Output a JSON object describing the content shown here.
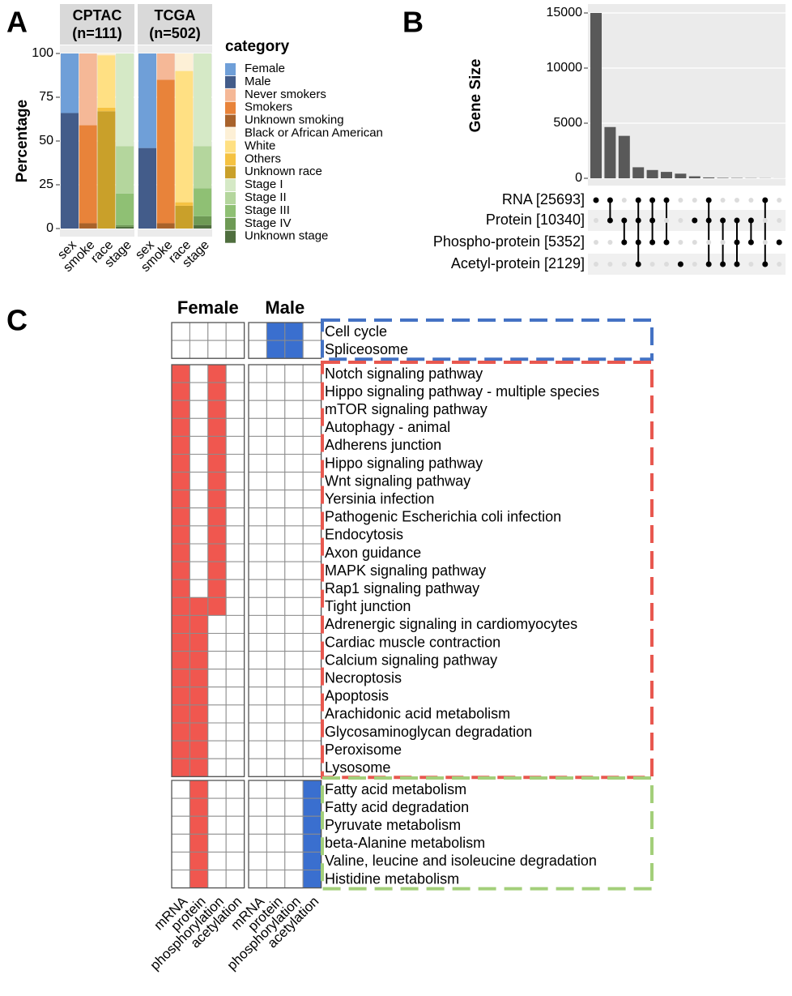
{
  "chart_data": [
    {
      "type": "stacked_bar",
      "panel": "A",
      "facets": [
        {
          "title": "CPTAC",
          "subtitle": "(n=111)"
        },
        {
          "title": "TCGA",
          "subtitle": "(n=502)"
        }
      ],
      "categories": [
        "sex",
        "smoke",
        "race",
        "stage",
        "sex",
        "smoke",
        "race",
        "stage"
      ],
      "ylabel": "Percentage",
      "ylim": [
        0,
        100
      ],
      "yticks": [
        0,
        25,
        50,
        75,
        100
      ],
      "legend_title": "category",
      "series": [
        {
          "name": "Female",
          "color": "#6f9fd8",
          "values": [
            34,
            null,
            null,
            null,
            54,
            null,
            null,
            null
          ]
        },
        {
          "name": "Male",
          "color": "#435c8a",
          "values": [
            66,
            null,
            null,
            null,
            46,
            null,
            null,
            null
          ]
        },
        {
          "name": "Never smokers",
          "color": "#f5b897",
          "values": [
            null,
            41,
            null,
            null,
            null,
            15,
            null,
            null
          ]
        },
        {
          "name": "Smokers",
          "color": "#e8833a",
          "values": [
            null,
            56,
            null,
            null,
            null,
            82,
            null,
            null
          ]
        },
        {
          "name": "Unknown smoking",
          "color": "#a8622b",
          "values": [
            null,
            3,
            null,
            null,
            null,
            3,
            null,
            null
          ]
        },
        {
          "name": "Black or African American",
          "color": "#fdf0d6",
          "values": [
            null,
            null,
            1,
            null,
            null,
            null,
            10,
            null
          ]
        },
        {
          "name": "White",
          "color": "#ffe083",
          "values": [
            null,
            null,
            30,
            null,
            null,
            null,
            75,
            null
          ]
        },
        {
          "name": "Others",
          "color": "#f5c242",
          "values": [
            null,
            null,
            2,
            null,
            null,
            null,
            2,
            null
          ]
        },
        {
          "name": "Unknown race",
          "color": "#c9a02a",
          "values": [
            null,
            null,
            67,
            null,
            null,
            null,
            13,
            null
          ]
        },
        {
          "name": "Stage I",
          "color": "#d5e9c6",
          "values": [
            null,
            null,
            null,
            53,
            null,
            null,
            null,
            53
          ]
        },
        {
          "name": "Stage II",
          "color": "#b4d69d",
          "values": [
            null,
            null,
            null,
            27,
            null,
            null,
            null,
            24
          ]
        },
        {
          "name": "Stage III",
          "color": "#8fc074",
          "values": [
            null,
            null,
            null,
            18,
            null,
            null,
            null,
            16
          ]
        },
        {
          "name": "Stage IV",
          "color": "#6e9a55",
          "values": [
            null,
            null,
            null,
            1,
            null,
            null,
            null,
            5
          ]
        },
        {
          "name": "Unknown stage",
          "color": "#4f6e3e",
          "values": [
            null,
            null,
            null,
            1,
            null,
            null,
            null,
            2
          ]
        }
      ]
    },
    {
      "type": "upset",
      "panel": "B",
      "ylabel": "Gene Size",
      "ylim": [
        0,
        15000
      ],
      "yticks": [
        0,
        5000,
        10000,
        15000
      ],
      "color": "#595959",
      "values": [
        15000,
        4650,
        3850,
        1000,
        750,
        580,
        420,
        180,
        80,
        40,
        30,
        20,
        15,
        5
      ],
      "sets": [
        "RNA [25693]",
        "Protein [10340]",
        "Phospho-protein [5352]",
        "Acetyl-protein [2129]"
      ],
      "matrix": [
        [
          1,
          0,
          0,
          0
        ],
        [
          1,
          1,
          0,
          0
        ],
        [
          0,
          1,
          1,
          0
        ],
        [
          1,
          1,
          1,
          1
        ],
        [
          1,
          1,
          1,
          0
        ],
        [
          1,
          0,
          1,
          0
        ],
        [
          0,
          0,
          0,
          1
        ],
        [
          0,
          1,
          0,
          0
        ],
        [
          1,
          1,
          0,
          1
        ],
        [
          0,
          1,
          0,
          1
        ],
        [
          0,
          1,
          1,
          1
        ],
        [
          0,
          1,
          1,
          0
        ],
        [
          1,
          0,
          0,
          1
        ],
        [
          0,
          0,
          1,
          0
        ]
      ]
    },
    {
      "type": "heatmap",
      "panel": "C",
      "groups": [
        {
          "name": "Female",
          "color": "#f0574f"
        },
        {
          "name": "Male",
          "color": "#3a6fcf"
        }
      ],
      "columns": [
        "mRNA",
        "protein",
        "phosphorylation",
        "acetylation"
      ],
      "blocks": [
        {
          "color": "#4472c4",
          "rows": [
            {
              "label": "Cell cycle",
              "values": [
                [
                  0,
                  0,
                  0,
                  0
                ],
                [
                  0,
                  1,
                  1,
                  0
                ]
              ]
            },
            {
              "label": "Spliceosome",
              "values": [
                [
                  0,
                  0,
                  0,
                  0
                ],
                [
                  0,
                  1,
                  1,
                  0
                ]
              ]
            }
          ]
        },
        {
          "color": "#e8584f",
          "rows": [
            {
              "label": "Notch signaling pathway",
              "values": [
                [
                  1,
                  0,
                  1,
                  0
                ],
                [
                  0,
                  0,
                  0,
                  0
                ]
              ]
            },
            {
              "label": "Hippo signaling pathway - multiple species",
              "values": [
                [
                  1,
                  0,
                  1,
                  0
                ],
                [
                  0,
                  0,
                  0,
                  0
                ]
              ]
            },
            {
              "label": "mTOR signaling pathway",
              "values": [
                [
                  1,
                  0,
                  1,
                  0
                ],
                [
                  0,
                  0,
                  0,
                  0
                ]
              ]
            },
            {
              "label": "Autophagy - animal",
              "values": [
                [
                  1,
                  0,
                  1,
                  0
                ],
                [
                  0,
                  0,
                  0,
                  0
                ]
              ]
            },
            {
              "label": "Adherens junction",
              "values": [
                [
                  1,
                  0,
                  1,
                  0
                ],
                [
                  0,
                  0,
                  0,
                  0
                ]
              ]
            },
            {
              "label": "Hippo signaling pathway",
              "values": [
                [
                  1,
                  0,
                  1,
                  0
                ],
                [
                  0,
                  0,
                  0,
                  0
                ]
              ]
            },
            {
              "label": "Wnt signaling pathway",
              "values": [
                [
                  1,
                  0,
                  1,
                  0
                ],
                [
                  0,
                  0,
                  0,
                  0
                ]
              ]
            },
            {
              "label": "Yersinia infection",
              "values": [
                [
                  1,
                  0,
                  1,
                  0
                ],
                [
                  0,
                  0,
                  0,
                  0
                ]
              ]
            },
            {
              "label": "Pathogenic Escherichia coli infection",
              "values": [
                [
                  1,
                  0,
                  1,
                  0
                ],
                [
                  0,
                  0,
                  0,
                  0
                ]
              ]
            },
            {
              "label": "Endocytosis",
              "values": [
                [
                  1,
                  0,
                  1,
                  0
                ],
                [
                  0,
                  0,
                  0,
                  0
                ]
              ]
            },
            {
              "label": "Axon guidance",
              "values": [
                [
                  1,
                  0,
                  1,
                  0
                ],
                [
                  0,
                  0,
                  0,
                  0
                ]
              ]
            },
            {
              "label": "MAPK signaling pathway",
              "values": [
                [
                  1,
                  0,
                  1,
                  0
                ],
                [
                  0,
                  0,
                  0,
                  0
                ]
              ]
            },
            {
              "label": "Rap1 signaling pathway",
              "values": [
                [
                  1,
                  0,
                  1,
                  0
                ],
                [
                  0,
                  0,
                  0,
                  0
                ]
              ]
            },
            {
              "label": "Tight junction",
              "values": [
                [
                  1,
                  1,
                  1,
                  0
                ],
                [
                  0,
                  0,
                  0,
                  0
                ]
              ]
            },
            {
              "label": "Adrenergic signaling in cardiomyocytes",
              "values": [
                [
                  1,
                  1,
                  0,
                  0
                ],
                [
                  0,
                  0,
                  0,
                  0
                ]
              ]
            },
            {
              "label": "Cardiac muscle contraction",
              "values": [
                [
                  1,
                  1,
                  0,
                  0
                ],
                [
                  0,
                  0,
                  0,
                  0
                ]
              ]
            },
            {
              "label": "Calcium signaling pathway",
              "values": [
                [
                  1,
                  1,
                  0,
                  0
                ],
                [
                  0,
                  0,
                  0,
                  0
                ]
              ]
            },
            {
              "label": "Necroptosis",
              "values": [
                [
                  1,
                  1,
                  0,
                  0
                ],
                [
                  0,
                  0,
                  0,
                  0
                ]
              ]
            },
            {
              "label": "Apoptosis",
              "values": [
                [
                  1,
                  1,
                  0,
                  0
                ],
                [
                  0,
                  0,
                  0,
                  0
                ]
              ]
            },
            {
              "label": "Arachidonic acid metabolism",
              "values": [
                [
                  1,
                  1,
                  0,
                  0
                ],
                [
                  0,
                  0,
                  0,
                  0
                ]
              ]
            },
            {
              "label": "Glycosaminoglycan degradation",
              "values": [
                [
                  1,
                  1,
                  0,
                  0
                ],
                [
                  0,
                  0,
                  0,
                  0
                ]
              ]
            },
            {
              "label": "Peroxisome",
              "values": [
                [
                  1,
                  1,
                  0,
                  0
                ],
                [
                  0,
                  0,
                  0,
                  0
                ]
              ]
            },
            {
              "label": "Lysosome",
              "values": [
                [
                  1,
                  1,
                  0,
                  0
                ],
                [
                  0,
                  0,
                  0,
                  0
                ]
              ]
            }
          ]
        },
        {
          "color": "#a3cf7a",
          "rows": [
            {
              "label": "Fatty acid metabolism",
              "values": [
                [
                  0,
                  1,
                  0,
                  0
                ],
                [
                  0,
                  0,
                  0,
                  1
                ]
              ]
            },
            {
              "label": "Fatty acid degradation",
              "values": [
                [
                  0,
                  1,
                  0,
                  0
                ],
                [
                  0,
                  0,
                  0,
                  1
                ]
              ]
            },
            {
              "label": "Pyruvate metabolism",
              "values": [
                [
                  0,
                  1,
                  0,
                  0
                ],
                [
                  0,
                  0,
                  0,
                  1
                ]
              ]
            },
            {
              "label": "beta-Alanine metabolism",
              "values": [
                [
                  0,
                  1,
                  0,
                  0
                ],
                [
                  0,
                  0,
                  0,
                  1
                ]
              ]
            },
            {
              "label": "Valine, leucine and isoleucine degradation",
              "values": [
                [
                  0,
                  1,
                  0,
                  0
                ],
                [
                  0,
                  0,
                  0,
                  1
                ]
              ]
            },
            {
              "label": "Histidine metabolism",
              "values": [
                [
                  0,
                  1,
                  0,
                  0
                ],
                [
                  0,
                  0,
                  0,
                  1
                ]
              ]
            }
          ]
        }
      ]
    }
  ]
}
